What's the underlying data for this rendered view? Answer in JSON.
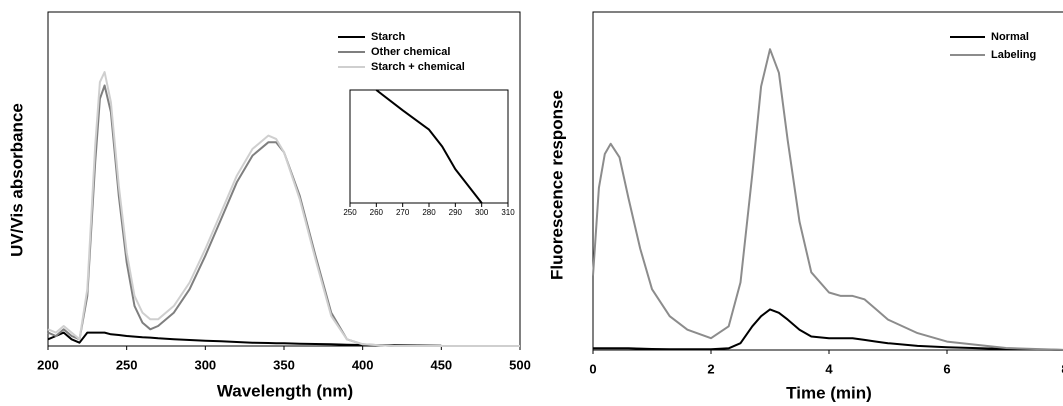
{
  "chart_data": [
    {
      "type": "line",
      "x_label": "Wavelength (nm)",
      "y_label": "UV/Vis absorbance",
      "x": [
        200,
        205,
        210,
        215,
        220,
        225,
        230,
        233,
        236,
        240,
        245,
        250,
        255,
        260,
        265,
        270,
        280,
        290,
        300,
        310,
        320,
        330,
        340,
        345,
        350,
        360,
        370,
        380,
        390,
        400,
        420,
        450,
        500
      ],
      "xlim": [
        200,
        500
      ],
      "xticks": [
        200,
        250,
        300,
        350,
        400,
        450,
        500
      ],
      "ylim": [
        0,
        1
      ],
      "series": [
        {
          "name": "Starch",
          "color": "#000000",
          "values": [
            0.02,
            0.03,
            0.04,
            0.02,
            0.01,
            0.04,
            0.04,
            0.04,
            0.04,
            0.035,
            0.033,
            0.03,
            0.028,
            0.026,
            0.025,
            0.023,
            0.02,
            0.018,
            0.016,
            0.014,
            0.012,
            0.01,
            0.009,
            0.008,
            0.008,
            0.007,
            0.006,
            0.005,
            0.004,
            0.003,
            0.002,
            0.001,
            null
          ]
        },
        {
          "name": "Other chemical",
          "color": "#7f7f7f",
          "values": [
            0.04,
            0.03,
            0.05,
            0.03,
            0.02,
            0.15,
            0.55,
            0.74,
            0.78,
            0.7,
            0.45,
            0.25,
            0.12,
            0.07,
            0.05,
            0.06,
            0.1,
            0.17,
            0.27,
            0.38,
            0.49,
            0.57,
            0.61,
            0.61,
            0.58,
            0.45,
            0.27,
            0.1,
            0.02,
            0.005,
            0,
            0,
            0
          ]
        },
        {
          "name": "Starch + chemical",
          "color": "#cfcfcf",
          "values": [
            0.05,
            0.04,
            0.06,
            0.04,
            0.02,
            0.17,
            0.6,
            0.79,
            0.82,
            0.73,
            0.48,
            0.28,
            0.15,
            0.1,
            0.08,
            0.08,
            0.12,
            0.19,
            0.29,
            0.4,
            0.51,
            0.59,
            0.63,
            0.62,
            0.58,
            0.44,
            0.26,
            0.09,
            0.02,
            0.005,
            0,
            0,
            0
          ]
        }
      ]
    },
    {
      "type": "line",
      "x": [
        260,
        270,
        280,
        285,
        290,
        300
      ],
      "values": [
        1,
        0.82,
        0.65,
        0.5,
        0.3,
        0
      ],
      "color": "#000000",
      "xlim": [
        250,
        310
      ],
      "xticks": [
        250,
        260,
        270,
        280,
        290,
        300,
        310
      ],
      "ylim": [
        0,
        1
      ]
    },
    {
      "type": "line",
      "x_label": "Time (min)",
      "y_label": "Fluorescence response",
      "x": [
        0,
        0.1,
        0.2,
        0.3,
        0.45,
        0.6,
        0.8,
        1,
        1.3,
        1.6,
        2,
        2.3,
        2.5,
        2.7,
        2.85,
        3,
        3.15,
        3.3,
        3.5,
        3.7,
        4,
        4.2,
        4.4,
        4.6,
        4.8,
        5,
        5.5,
        6,
        7,
        8
      ],
      "xlim": [
        0,
        8
      ],
      "xticks": [
        0,
        2,
        4,
        6,
        8
      ],
      "ylim": [
        0,
        1
      ],
      "series": [
        {
          "name": "Normal",
          "color": "#000000",
          "values": [
            0.005,
            0.005,
            0.005,
            0.005,
            0.005,
            0.005,
            0.004,
            0.003,
            0.002,
            0.002,
            0.002,
            0.005,
            0.02,
            0.07,
            0.1,
            0.12,
            0.11,
            0.09,
            0.06,
            0.04,
            0.035,
            0.035,
            0.035,
            0.03,
            0.025,
            0.02,
            0.012,
            0.008,
            0.003,
            0
          ]
        },
        {
          "name": "Labeling",
          "color": "#8c8c8c",
          "values": [
            0.22,
            0.48,
            0.58,
            0.61,
            0.57,
            0.45,
            0.3,
            0.18,
            0.1,
            0.06,
            0.035,
            0.07,
            0.2,
            0.52,
            0.78,
            0.89,
            0.82,
            0.62,
            0.38,
            0.23,
            0.17,
            0.16,
            0.16,
            0.15,
            0.12,
            0.09,
            0.05,
            0.025,
            0.006,
            0
          ]
        }
      ]
    }
  ]
}
